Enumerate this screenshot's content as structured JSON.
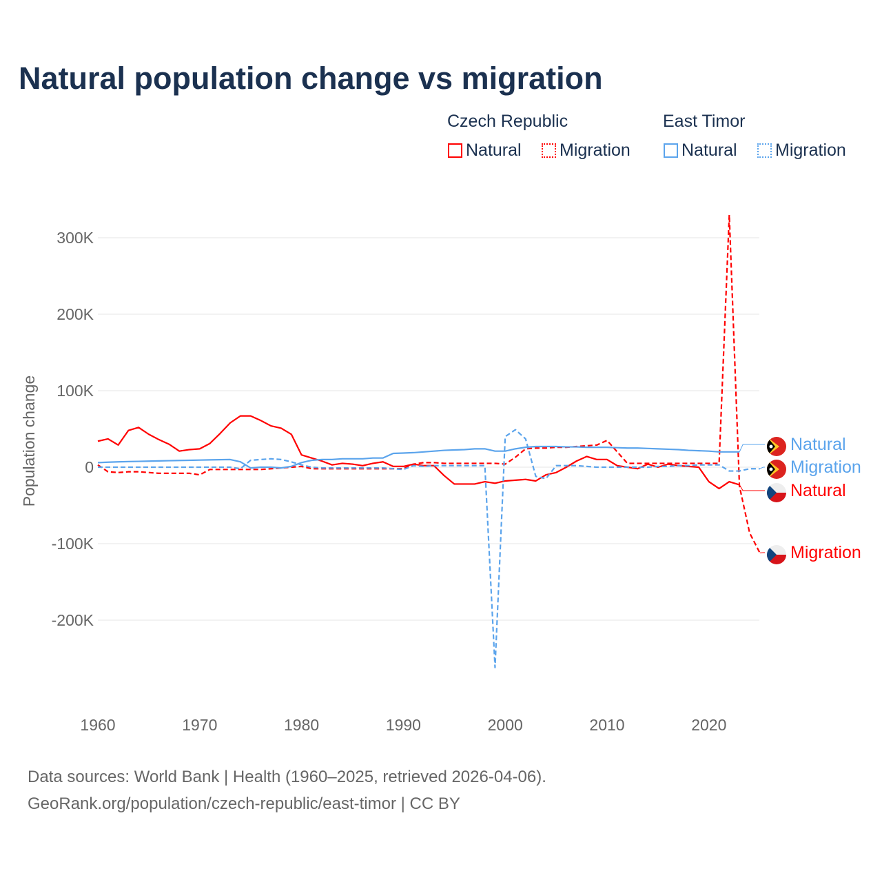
{
  "chart_data": {
    "type": "line",
    "title": "Natural population change vs migration",
    "xlabel": "",
    "ylabel": "Population change",
    "xlim": [
      1960,
      2025
    ],
    "ylim": [
      -300000,
      330000
    ],
    "x_ticks": [
      {
        "v": 1960,
        "label": "1960"
      },
      {
        "v": 1970,
        "label": "1970"
      },
      {
        "v": 1980,
        "label": "1980"
      },
      {
        "v": 1990,
        "label": "1990"
      },
      {
        "v": 2000,
        "label": "2000"
      },
      {
        "v": 2010,
        "label": "2010"
      },
      {
        "v": 2020,
        "label": "2020"
      }
    ],
    "y_ticks": [
      {
        "v": 300000,
        "label": "300K"
      },
      {
        "v": 200000,
        "label": "200K"
      },
      {
        "v": 100000,
        "label": "100K"
      },
      {
        "v": 0,
        "label": "0"
      },
      {
        "v": -100000,
        "label": "-100K"
      },
      {
        "v": -200000,
        "label": "-200K"
      }
    ],
    "legend": {
      "placement": "top-right",
      "groups": [
        {
          "name": "Czech Republic",
          "items": [
            "Natural",
            "Migration"
          ]
        },
        {
          "name": "East Timor",
          "items": [
            "Natural",
            "Migration"
          ]
        }
      ]
    },
    "series": [
      {
        "name": "Czech Republic Natural",
        "country": "Czech Republic",
        "kind": "Natural",
        "color": "#ff0000",
        "dash": false,
        "start": 1960,
        "values": [
          34000,
          37000,
          29000,
          48000,
          52000,
          43000,
          36000,
          30000,
          21000,
          23000,
          24000,
          31000,
          44000,
          58000,
          67000,
          67000,
          61000,
          54000,
          51000,
          43000,
          16000,
          12000,
          8000,
          3000,
          5000,
          4000,
          2000,
          5000,
          7000,
          1000,
          1000,
          4000,
          2000,
          2000,
          -11000,
          -22000,
          -22000,
          -22000,
          -19000,
          -21000,
          -18000,
          -17000,
          -16000,
          -18000,
          -10000,
          -7000,
          0,
          8000,
          14000,
          10000,
          10000,
          2000,
          0,
          -2000,
          4000,
          0,
          4000,
          2000,
          1000,
          0,
          -19000,
          -28000,
          -19000,
          -23000
        ]
      },
      {
        "name": "Czech Republic Migration",
        "country": "Czech Republic",
        "kind": "Migration",
        "color": "#ff0000",
        "dash": true,
        "start": 1960,
        "values": [
          3000,
          -6000,
          -7000,
          -6000,
          -6000,
          -7000,
          -8000,
          -8000,
          -8000,
          -8000,
          -10000,
          -3000,
          -3000,
          -3000,
          -3000,
          -3000,
          -3000,
          -2000,
          -1000,
          0,
          1000,
          -2000,
          -2000,
          -2000,
          -2000,
          -2000,
          -2000,
          -2000,
          -2000,
          -2000,
          -2000,
          4000,
          6000,
          6000,
          5000,
          5000,
          5000,
          5000,
          5000,
          5000,
          4000,
          13000,
          24000,
          25000,
          25000,
          26000,
          26000,
          27000,
          28000,
          29000,
          35000,
          20000,
          5000,
          5000,
          5000,
          5000,
          5000,
          5000,
          5000,
          5000,
          5000,
          5000,
          330000,
          -25000,
          -86000,
          -112000
        ]
      },
      {
        "name": "East Timor Natural",
        "country": "East Timor",
        "kind": "Natural",
        "color": "#5ba4ec",
        "dash": false,
        "start": 1960,
        "values": [
          6000,
          6500,
          7000,
          7300,
          7600,
          7900,
          8200,
          8500,
          8800,
          9000,
          9300,
          9600,
          9800,
          10000,
          7000,
          -1000,
          0,
          0,
          -1000,
          1000,
          6000,
          9000,
          10000,
          10000,
          11000,
          11000,
          11000,
          12000,
          12000,
          18000,
          18500,
          19000,
          20000,
          21000,
          22000,
          22500,
          23000,
          24000,
          24000,
          21000,
          21000,
          24000,
          26000,
          27000,
          27000,
          27000,
          26500,
          26500,
          26000,
          26000,
          26000,
          25500,
          25000,
          25000,
          24500,
          24000,
          23500,
          23000,
          22000,
          21500,
          21000,
          20000,
          20000,
          20000
        ]
      },
      {
        "name": "East Timor Migration",
        "country": "East Timor",
        "kind": "Migration",
        "color": "#5ba4ec",
        "dash": true,
        "start": 1960,
        "values": [
          0,
          0,
          0,
          0,
          0,
          0,
          0,
          0,
          0,
          0,
          0,
          0,
          0,
          0,
          -2000,
          9000,
          10000,
          11000,
          10000,
          7000,
          3000,
          0,
          -1000,
          -1000,
          -1000,
          -1000,
          -1000,
          -1000,
          -1000,
          -2000,
          -3000,
          2000,
          1000,
          2000,
          2000,
          2000,
          2000,
          2000,
          2000,
          -262000,
          40000,
          49000,
          37000,
          -12000,
          -15000,
          2000,
          2000,
          2000,
          1000,
          0,
          0,
          0,
          0,
          0,
          0,
          1000,
          1000,
          2000,
          2000,
          3000,
          3000,
          3000,
          -5000,
          -5000,
          -2000,
          -2000
        ]
      }
    ],
    "end_labels": [
      {
        "text": "Natural",
        "series": "East Timor Natural",
        "flag": "east-timor"
      },
      {
        "text": "Migration",
        "series": "East Timor Migration",
        "flag": "east-timor"
      },
      {
        "text": "Natural",
        "series": "Czech Republic Natural",
        "flag": "czech-republic"
      },
      {
        "text": "Migration",
        "series": "Czech Republic Migration",
        "flag": "czech-republic"
      }
    ]
  },
  "legend": {
    "group1": "Czech Republic",
    "group2": "East Timor",
    "natural": "Natural",
    "migration": "Migration"
  },
  "source": {
    "line1": "Data sources: World Bank | Health (1960–2025, retrieved 2026-04-06).",
    "line2": "GeoRank.org/population/czech-republic/east-timor | CC BY"
  }
}
